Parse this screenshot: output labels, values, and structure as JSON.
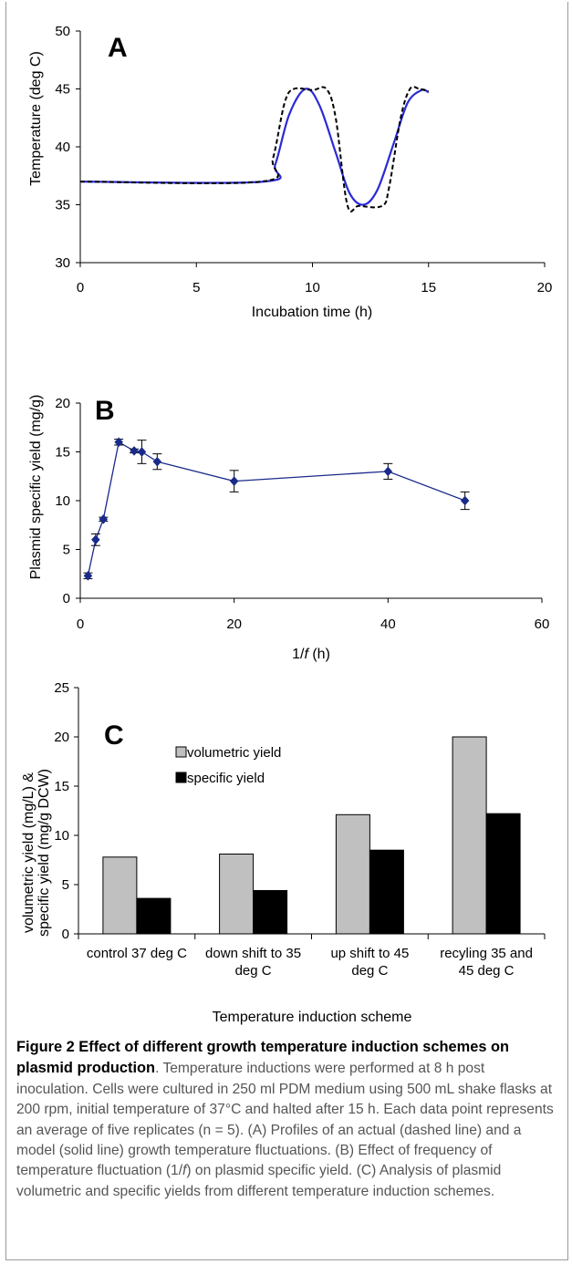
{
  "chart_data": [
    {
      "type": "line",
      "panel_label": "A",
      "xlabel": "Incubation time (h)",
      "ylabel": "Temperature (deg C)",
      "xlim": [
        0,
        20
      ],
      "ylim": [
        30,
        50
      ],
      "xticks": [
        "0",
        "5",
        "10",
        "15",
        "20"
      ],
      "yticks": [
        "30",
        "35",
        "40",
        "45",
        "50"
      ],
      "grid": false,
      "series": [
        {
          "style": "solid",
          "color": "#2a2ad6",
          "x": [
            0,
            7.9,
            8.4,
            9.0,
            9.7,
            10.3,
            11.0,
            11.6,
            12.2,
            12.8,
            13.5,
            14.1,
            14.7,
            15.0
          ],
          "y": [
            37,
            37,
            38.5,
            42.8,
            45,
            43.6,
            39.5,
            36.0,
            35,
            36.3,
            40.3,
            43.8,
            44.9,
            44.7
          ]
        },
        {
          "style": "dashed",
          "color": "#000000",
          "x": [
            0,
            7.8,
            8.3,
            8.8,
            9.2,
            10.0,
            10.6,
            11.0,
            11.5,
            12.0,
            13.0,
            13.3,
            13.8,
            14.2,
            14.6,
            15.0
          ],
          "y": [
            37,
            37,
            39.0,
            43.8,
            45.0,
            44.9,
            45.0,
            42.5,
            35.0,
            34.9,
            34.9,
            36.5,
            42.5,
            45.0,
            45.0,
            44.8
          ]
        }
      ]
    },
    {
      "type": "line",
      "panel_label": "B",
      "xlabel_prefix": "1/",
      "xlabel_var": "f",
      "xlabel_suffix": " (h)",
      "ylabel": "Plasmid specific yield (mg/g)",
      "xlim": [
        0,
        60
      ],
      "ylim": [
        0,
        20
      ],
      "xticks": [
        "0",
        "20",
        "40",
        "60"
      ],
      "yticks": [
        "0",
        "5",
        "10",
        "15",
        "20"
      ],
      "grid": false,
      "color": "#1a2a8a",
      "x": [
        1,
        2,
        3,
        5,
        7,
        8,
        10,
        20,
        40,
        50
      ],
      "y": [
        2.3,
        6.0,
        8.1,
        16.0,
        15.1,
        15.0,
        14.0,
        12.0,
        13.0,
        10.0
      ],
      "error": [
        0.3,
        0.6,
        0.2,
        0.3,
        0.2,
        1.2,
        0.8,
        1.1,
        0.8,
        0.9
      ]
    },
    {
      "type": "bar",
      "panel_label": "C",
      "xlabel": "Temperature induction scheme",
      "ylabel_line1": "volumetric yield (mg/L) &",
      "ylabel_line2": "specific yield  (mg/g DCW)",
      "ylim": [
        0,
        25
      ],
      "yticks": [
        "0",
        "5",
        "10",
        "15",
        "20",
        "25"
      ],
      "grid": false,
      "legend_position": "top-left",
      "categories": [
        {
          "line1": "control 37 deg C",
          "line2": ""
        },
        {
          "line1": "down shift to 35",
          "line2": "deg C"
        },
        {
          "line1": "up shift to 45",
          "line2": "deg C"
        },
        {
          "line1": "recyling 35 and",
          "line2": "45 deg C"
        }
      ],
      "series": [
        {
          "name": "volumetric yield",
          "color": "#c0c0c0",
          "values": [
            7.8,
            8.1,
            12.1,
            20.0
          ]
        },
        {
          "name": "specific yield",
          "color": "#000000",
          "values": [
            3.6,
            4.4,
            8.5,
            12.2
          ]
        }
      ]
    }
  ],
  "caption": {
    "title": "Figure 2 Effect of different growth temperature induction schemes on plasmid production",
    "body_1": ". Temperature inductions were performed at 8 h post inoculation. Cells were cultured in 250 ml PDM medium using 500 mL shake flasks at 200 rpm, initial temperature of 37°C and halted after 15 h. Each data point represents an average of five replicates (n = 5). (A) Profiles of an actual (dashed line) and a model (solid line) growth temperature fluctuations. (B) Effect of frequency of temperature fluctuation (1/",
    "body_var": "f",
    "body_2": ") on plasmid specific yield. (C) Analysis of plasmid volumetric and specific yields from different temperature induction schemes."
  }
}
